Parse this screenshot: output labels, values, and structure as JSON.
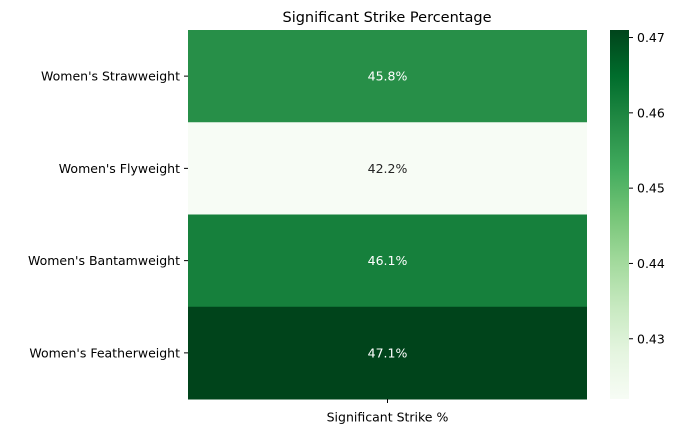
{
  "chart_data": {
    "type": "heatmap",
    "title": "Significant Strike Percentage",
    "x_categories": [
      "Significant Strike %"
    ],
    "y_categories": [
      "Women's Strawweight",
      "Women's Flyweight",
      "Women's Bantamweight",
      "Women's Featherweight"
    ],
    "values": [
      0.458,
      0.422,
      0.461,
      0.471
    ],
    "cell_labels": [
      "45.8%",
      "42.2%",
      "46.1%",
      "47.1%"
    ],
    "colorbar": {
      "min": 0.422,
      "max": 0.471,
      "ticks": [
        0.43,
        0.44,
        0.45,
        0.46,
        0.47
      ],
      "tick_labels": [
        "0.43",
        "0.44",
        "0.45",
        "0.46",
        "0.47"
      ],
      "colormap": "Greens"
    },
    "xlabel": "",
    "ylabel": "",
    "grid": false
  }
}
